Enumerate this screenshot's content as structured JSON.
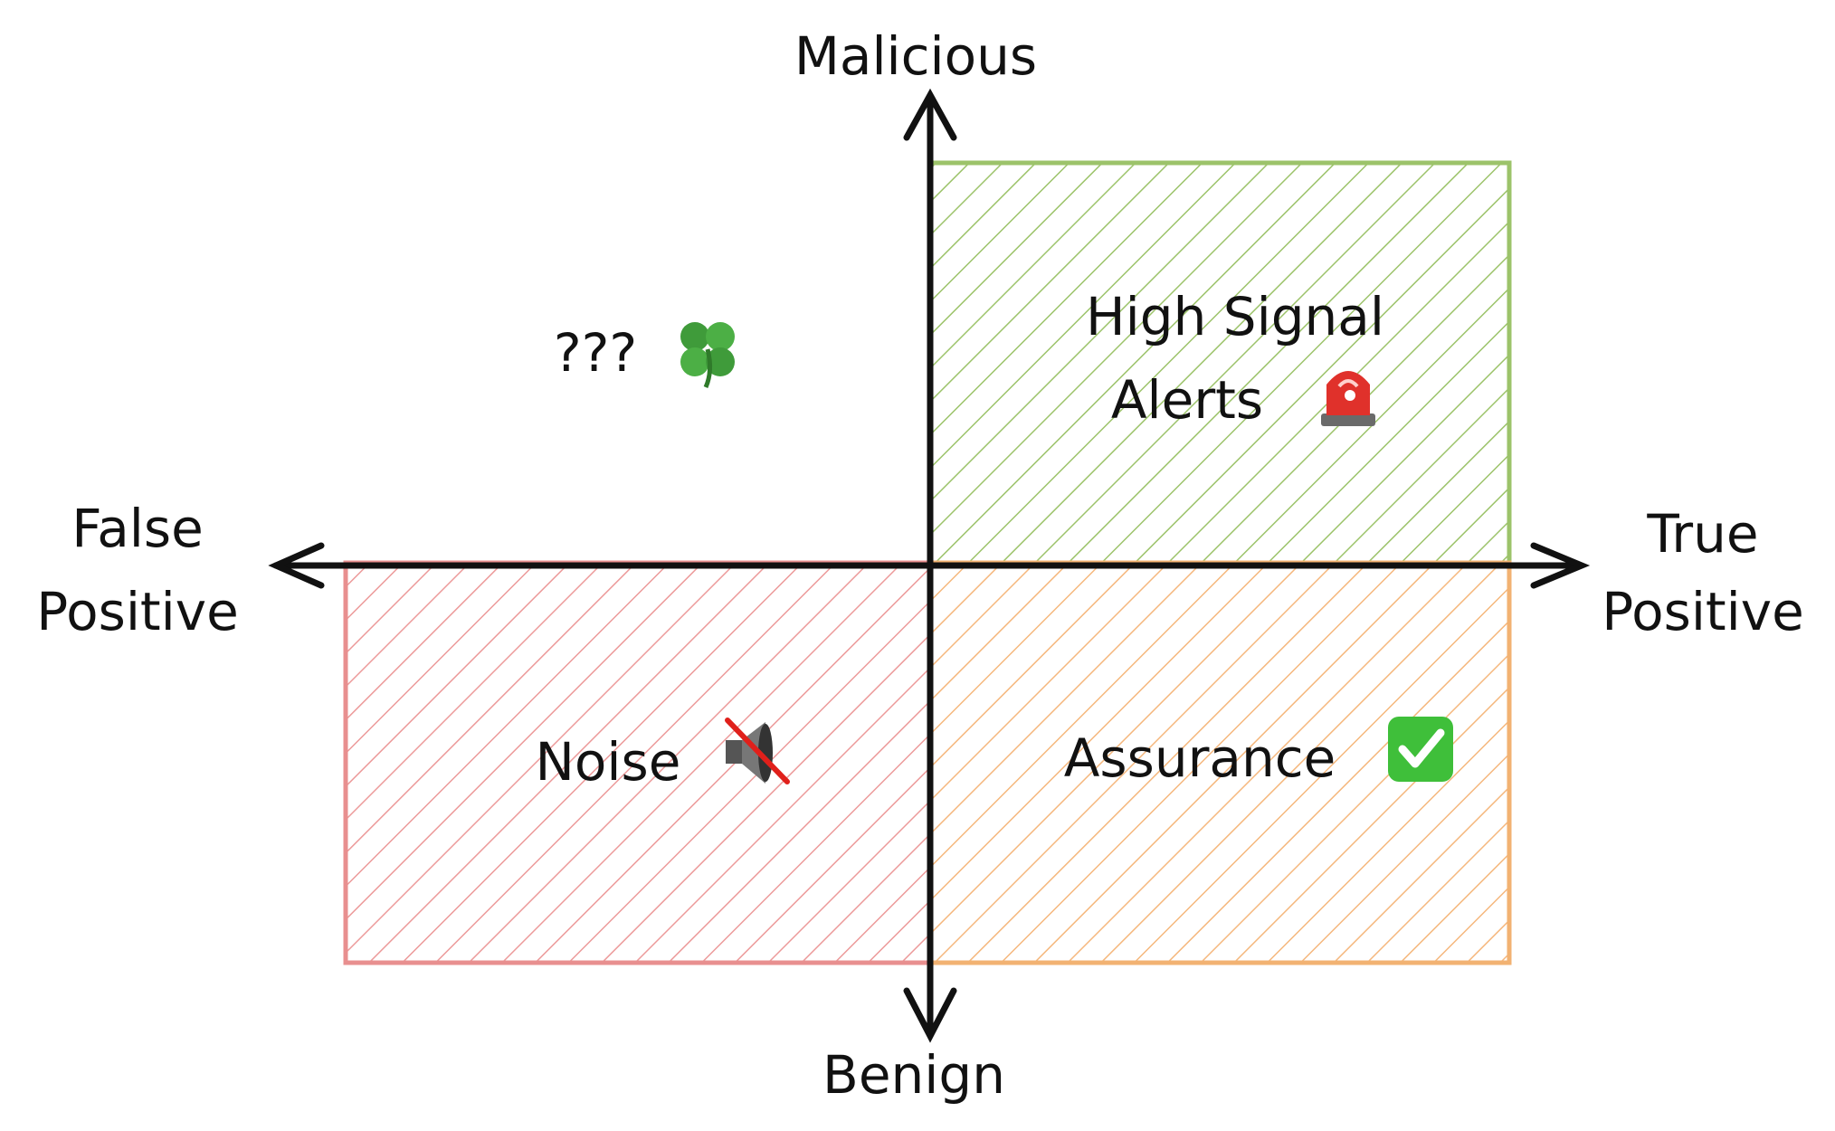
{
  "axes": {
    "top_label": "Malicious",
    "bottom_label": "Benign",
    "left_label_line1": "False",
    "left_label_line2": "Positive",
    "right_label_line1": "True",
    "right_label_line2": "Positive"
  },
  "quadrants": {
    "top_left": {
      "label": "???",
      "icon": "four-leaf-clover-icon"
    },
    "top_right": {
      "label_line1": "High Signal",
      "label_line2": "Alerts",
      "icon": "police-light-icon",
      "color": "#9cc36a"
    },
    "bottom_left": {
      "label": "Noise",
      "icon": "muted-speaker-icon",
      "color": "#e88f8f"
    },
    "bottom_right": {
      "label": "Assurance",
      "icon": "check-mark-button-icon",
      "color": "#f2b272"
    }
  },
  "colors": {
    "axis": "#111111",
    "green": "#9cc36a",
    "red": "#e88f8f",
    "orange": "#f2b272"
  }
}
